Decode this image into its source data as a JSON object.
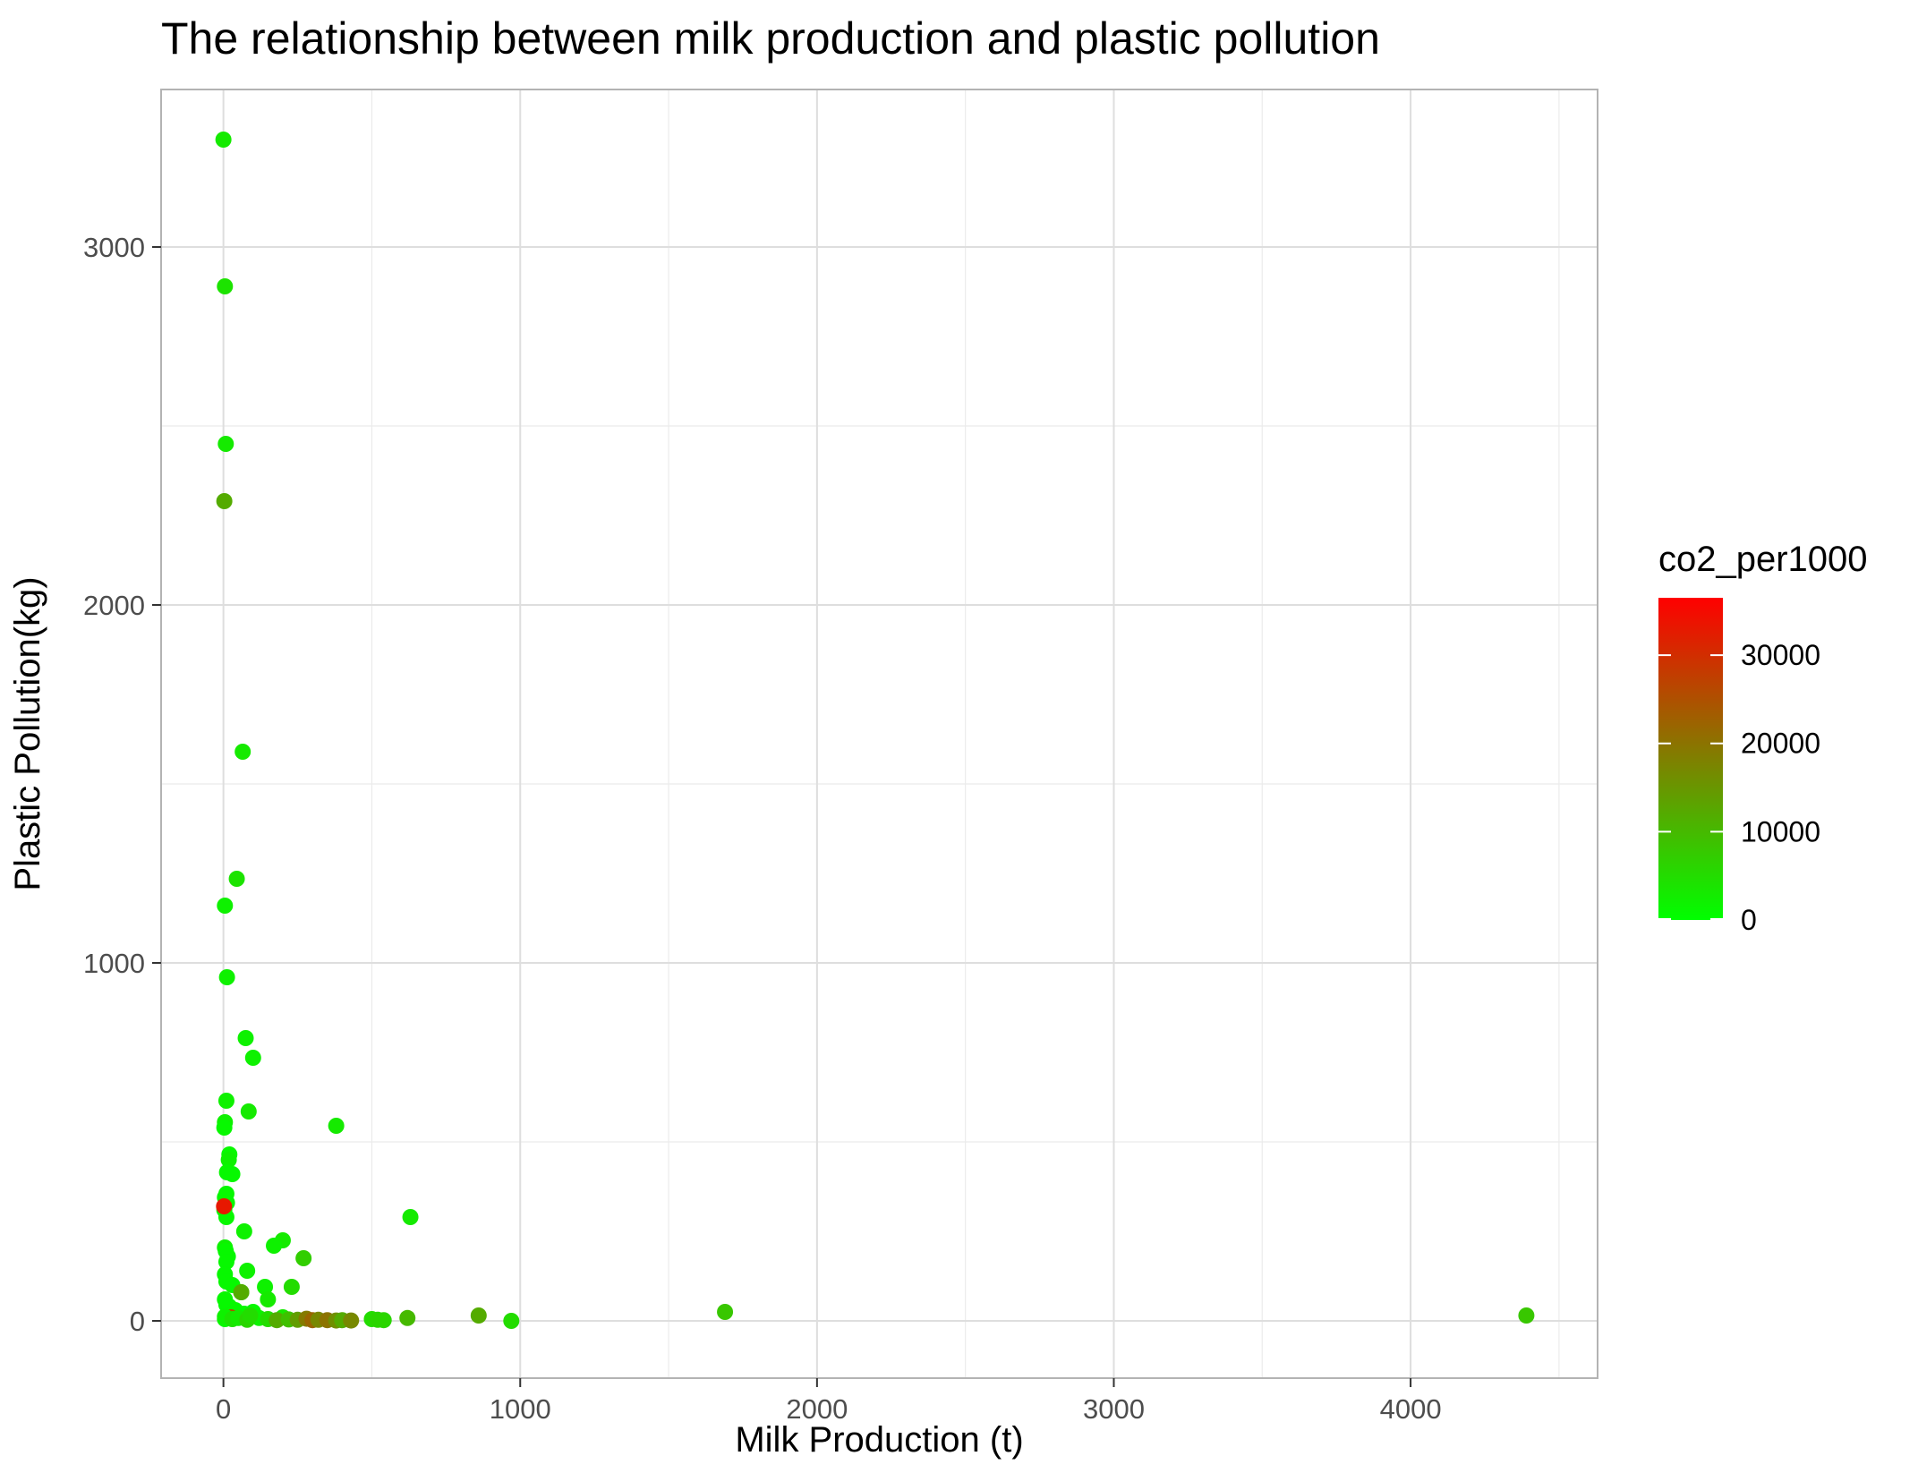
{
  "chart_data": {
    "type": "scatter",
    "title": "The relationship between milk production and plastic pollution",
    "xlabel": "Milk Production (t)",
    "ylabel": "Plastic Pollution(kg)",
    "xlim": [
      -210,
      4630
    ],
    "ylim": [
      -160,
      3440
    ],
    "x_ticks": [
      0,
      1000,
      2000,
      3000,
      4000
    ],
    "x_minor_ticks": [
      500,
      1500,
      2500,
      3500,
      4500
    ],
    "y_ticks": [
      0,
      1000,
      2000,
      3000
    ],
    "y_minor_ticks": [
      500,
      1500,
      2500
    ],
    "grid": true,
    "legend": {
      "title": "co2_per1000",
      "position": "right",
      "type": "colorbar",
      "range": [
        0,
        36500
      ],
      "ticks": [
        0,
        10000,
        20000,
        30000
      ],
      "low_color": "#00ff00",
      "high_color": "#ff0000"
    },
    "series": [
      {
        "x": [
          0,
          5,
          8,
          3,
          65,
          45,
          5,
          12,
          75,
          100,
          85,
          380,
          10,
          5,
          3,
          20,
          18,
          12,
          30,
          10,
          5,
          3,
          12,
          10,
          630,
          70,
          200,
          170,
          270,
          5,
          8,
          15,
          10,
          80,
          230,
          5,
          140,
          10,
          30,
          60,
          150,
          5,
          10,
          20,
          40,
          100,
          70,
          15,
          25,
          120,
          200,
          5,
          5,
          30,
          50,
          80,
          150,
          180,
          220,
          250,
          280,
          300,
          320,
          350,
          380,
          400,
          430,
          500,
          520,
          540,
          620,
          860,
          970,
          1690,
          4390,
          2,
          60,
          90
        ],
        "y": [
          3300,
          2890,
          2450,
          2290,
          1590,
          1235,
          1160,
          960,
          790,
          735,
          585,
          545,
          615,
          555,
          540,
          465,
          450,
          415,
          410,
          355,
          345,
          310,
          330,
          290,
          290,
          250,
          225,
          210,
          175,
          205,
          195,
          180,
          165,
          140,
          95,
          130,
          95,
          110,
          100,
          80,
          60,
          60,
          45,
          40,
          30,
          25,
          20,
          15,
          10,
          8,
          10,
          5,
          12,
          5,
          8,
          3,
          5,
          2,
          4,
          3,
          6,
          2,
          3,
          2,
          1,
          2,
          1,
          5,
          3,
          2,
          8,
          15,
          0,
          25,
          15,
          320,
          80,
          15
        ],
        "co2": [
          3000,
          4000,
          3000,
          12000,
          3000,
          4000,
          2000,
          2000,
          2000,
          2000,
          3000,
          3000,
          2000,
          2000,
          1000,
          1000,
          2000,
          1000,
          1000,
          1000,
          1000,
          1000,
          1000,
          1000,
          3000,
          2000,
          3000,
          2000,
          7000,
          2000,
          1000,
          1000,
          1000,
          2000,
          5000,
          1000,
          2000,
          1000,
          1000,
          1000,
          3000,
          1000,
          1000,
          1000,
          1000,
          1000,
          1000,
          1000,
          25000,
          2000,
          3000,
          1000,
          2000,
          4000,
          3000,
          6000,
          5000,
          12000,
          9000,
          14000,
          19000,
          22000,
          17000,
          20000,
          16000,
          12000,
          17000,
          5000,
          6000,
          6000,
          10000,
          12000,
          5000,
          8000,
          8000,
          33000,
          12000,
          5000
        ]
      }
    ]
  }
}
